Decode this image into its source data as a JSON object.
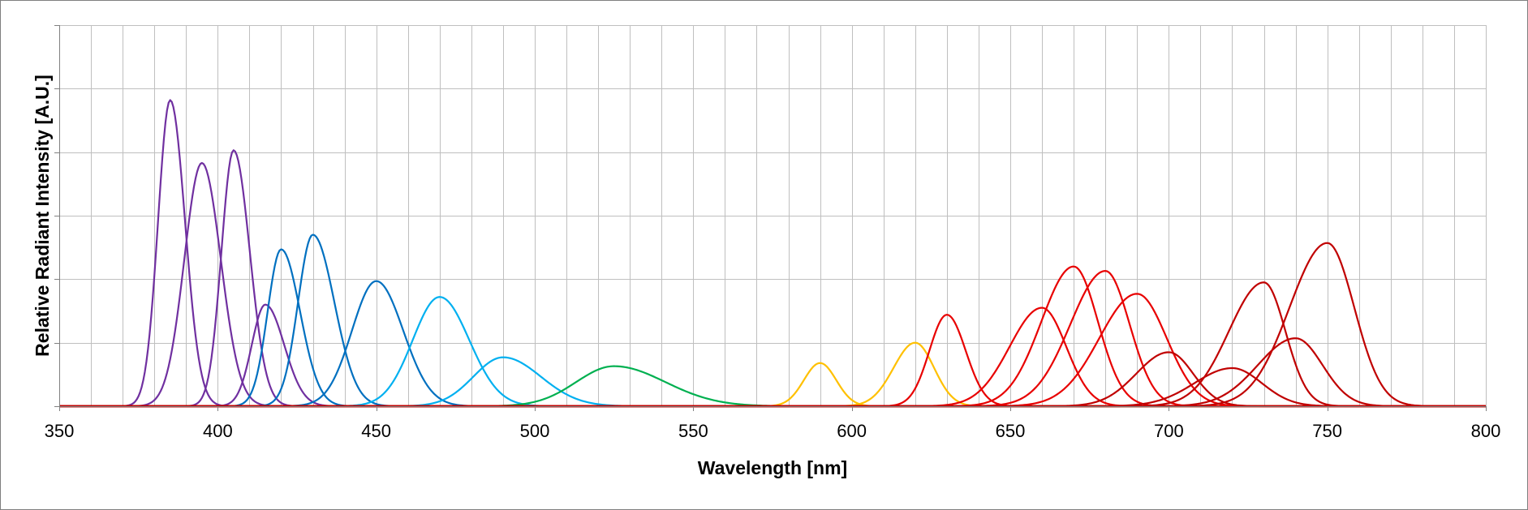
{
  "chart_data": {
    "type": "line",
    "title": "",
    "xlabel": "Wavelength [nm]",
    "ylabel": "Relative Radiant Intensity [A.U.]",
    "xlim": [
      350,
      800
    ],
    "ylim": [
      0,
      6
    ],
    "x_ticks": [
      350,
      400,
      450,
      500,
      550,
      600,
      650,
      700,
      750,
      800
    ],
    "x_minor_step": 10,
    "y_gridlines": [
      1,
      2,
      3,
      4,
      5,
      6
    ],
    "y_tick_labels_shown": false,
    "legend": "none",
    "series": [
      {
        "name": "385 nm",
        "peak": 385,
        "amplitude": 4.82,
        "fwhm_left": 9,
        "fwhm_right": 11,
        "color": "#7030a0"
      },
      {
        "name": "395 nm",
        "peak": 395,
        "amplitude": 3.83,
        "fwhm_left": 13,
        "fwhm_right": 14,
        "color": "#7030a0"
      },
      {
        "name": "405 nm",
        "peak": 405,
        "amplitude": 4.03,
        "fwhm_left": 9,
        "fwhm_right": 12,
        "color": "#7030a0"
      },
      {
        "name": "415 nm",
        "peak": 415,
        "amplitude": 1.6,
        "fwhm_left": 10,
        "fwhm_right": 14,
        "color": "#7030a0"
      },
      {
        "name": "420 nm",
        "peak": 420,
        "amplitude": 2.47,
        "fwhm_left": 10,
        "fwhm_right": 14,
        "color": "#0070c0"
      },
      {
        "name": "430 nm",
        "peak": 430,
        "amplitude": 2.7,
        "fwhm_left": 11,
        "fwhm_right": 16,
        "color": "#0070c0"
      },
      {
        "name": "450 nm",
        "peak": 450,
        "amplitude": 1.97,
        "fwhm_left": 18,
        "fwhm_right": 20,
        "color": "#0070c0"
      },
      {
        "name": "470 nm",
        "peak": 470,
        "amplitude": 1.72,
        "fwhm_left": 20,
        "fwhm_right": 22,
        "color": "#00b0f0"
      },
      {
        "name": "490 nm",
        "peak": 490,
        "amplitude": 0.77,
        "fwhm_left": 22,
        "fwhm_right": 28,
        "color": "#00b0f0"
      },
      {
        "name": "525 nm",
        "peak": 525,
        "amplitude": 0.63,
        "fwhm_left": 28,
        "fwhm_right": 38,
        "color": "#00b050"
      },
      {
        "name": "590 nm",
        "peak": 590,
        "amplitude": 0.68,
        "fwhm_left": 12,
        "fwhm_right": 12,
        "color": "#ffc000"
      },
      {
        "name": "620 nm",
        "peak": 620,
        "amplitude": 1.0,
        "fwhm_left": 16,
        "fwhm_right": 14,
        "color": "#ffc000"
      },
      {
        "name": "630 nm",
        "peak": 630,
        "amplitude": 1.44,
        "fwhm_left": 13,
        "fwhm_right": 14,
        "color": "#e80000"
      },
      {
        "name": "660 nm",
        "peak": 660,
        "amplitude": 1.55,
        "fwhm_left": 24,
        "fwhm_right": 18,
        "color": "#e80000"
      },
      {
        "name": "670 nm",
        "peak": 670,
        "amplitude": 2.2,
        "fwhm_left": 24,
        "fwhm_right": 18,
        "color": "#e80000"
      },
      {
        "name": "680 nm",
        "peak": 680,
        "amplitude": 2.13,
        "fwhm_left": 26,
        "fwhm_right": 18,
        "color": "#e80000"
      },
      {
        "name": "690 nm",
        "peak": 690,
        "amplitude": 1.77,
        "fwhm_left": 28,
        "fwhm_right": 22,
        "color": "#e80000"
      },
      {
        "name": "700 nm",
        "peak": 700,
        "amplitude": 0.85,
        "fwhm_left": 24,
        "fwhm_right": 18,
        "color": "#c00000"
      },
      {
        "name": "720 nm",
        "peak": 720,
        "amplitude": 0.6,
        "fwhm_left": 28,
        "fwhm_right": 22,
        "color": "#c00000"
      },
      {
        "name": "730 nm",
        "peak": 730,
        "amplitude": 1.95,
        "fwhm_left": 26,
        "fwhm_right": 16,
        "color": "#c00000"
      },
      {
        "name": "740 nm",
        "peak": 740,
        "amplitude": 1.07,
        "fwhm_left": 28,
        "fwhm_right": 20,
        "color": "#c00000"
      },
      {
        "name": "750 nm",
        "peak": 750,
        "amplitude": 2.57,
        "fwhm_left": 28,
        "fwhm_right": 20,
        "color": "#c00000"
      }
    ]
  },
  "colors": {
    "grid": "#bfbfbf",
    "axis": "#808080",
    "border": "#7f7f7f"
  }
}
